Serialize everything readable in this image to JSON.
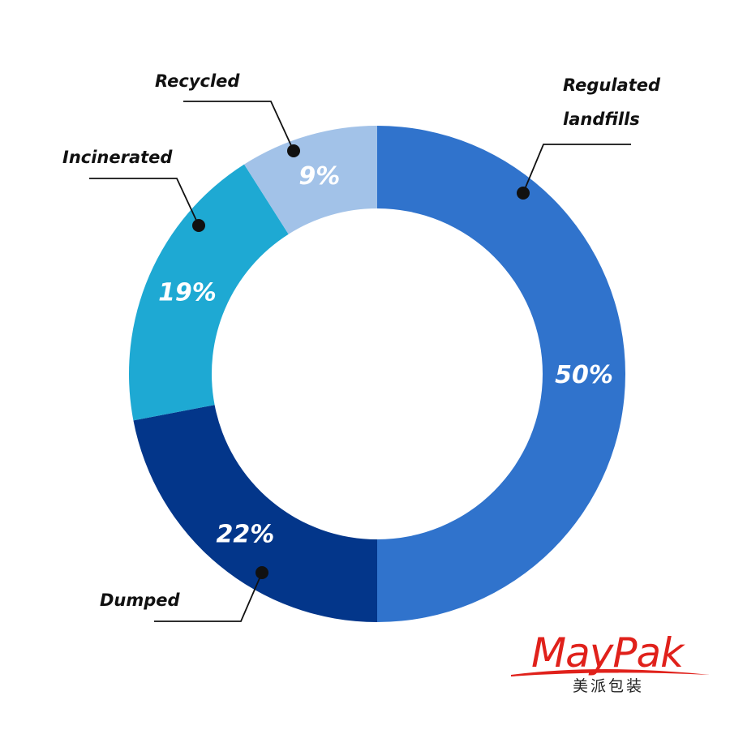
{
  "chart_data": {
    "type": "pie",
    "donut": true,
    "categories": [
      "Regulated landfills",
      "Dumped",
      "Incinerated",
      "Recycled"
    ],
    "values": [
      50,
      22,
      19,
      9
    ],
    "value_labels": [
      "50%",
      "22%",
      "19%",
      "9%"
    ],
    "label_lines": [
      [
        "Regulated",
        "landfills"
      ],
      [
        "Dumped"
      ],
      [
        "Incinerated"
      ],
      [
        "Recycled"
      ]
    ],
    "colors": [
      "#3073cc",
      "#03368a",
      "#1ea9d3",
      "#a2c2e8"
    ],
    "start_angle_deg": 0,
    "direction": "clockwise",
    "legend": "none"
  },
  "logo": {
    "text": "MayPak",
    "subtitle": "美派包装",
    "color": "#e0211b"
  }
}
